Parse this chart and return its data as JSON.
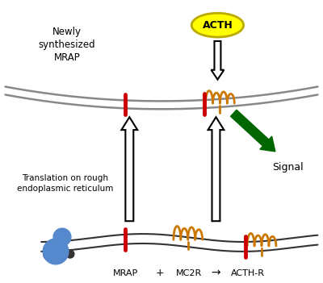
{
  "fig_width": 4.0,
  "fig_height": 3.51,
  "dpi": 100,
  "bg_color": "#ffffff",
  "membrane_color": "#888888",
  "membrane_linewidth": 1.8,
  "mrap_color": "#cc0000",
  "receptor_color": "#cc7700",
  "acth_fill": "#ffff00",
  "acth_stroke": "#bbaa00",
  "acth_text": "ACTH",
  "signal_text": "Signal",
  "newly_text": "Newly\nsynthesized\nMRAP",
  "translation_text": "Translation on rough\nendoplasmic reticulum",
  "label_mrap": "MRAP",
  "label_plus": "+",
  "label_mc2r": "MC2R",
  "label_arrow": "→",
  "label_acthr": "ACTH-R",
  "green_arrow_color": "#006600",
  "white_arrow_color": "#ffffff",
  "white_arrow_edge": "#000000",
  "ribosome_color": "#5588cc",
  "er_membrane_color": "#333333"
}
